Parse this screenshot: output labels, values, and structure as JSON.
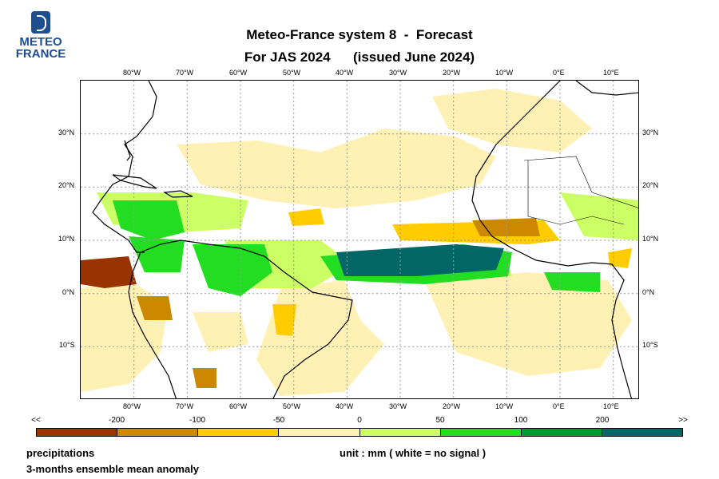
{
  "logo": {
    "line1": "METEO",
    "line2": "FRANCE",
    "icon": "meteo-france-logo-icon"
  },
  "title": {
    "line1": "Meteo-France system 8  -  Forecast",
    "line2": "For JAS 2024      (issued June 2024)"
  },
  "map": {
    "lon_ticks": [
      "80°W",
      "70°W",
      "60°W",
      "50°W",
      "40°W",
      "30°W",
      "20°W",
      "10°W",
      "0°E",
      "10°E"
    ],
    "lat_ticks": [
      "30°N",
      "20°N",
      "10°N",
      "0°N",
      "10°S"
    ],
    "lon_range": [
      -90,
      15
    ],
    "lat_range": [
      -20,
      40
    ],
    "grid": true
  },
  "colorbar": {
    "labels": [
      "<<",
      "-200",
      "-100",
      "-50",
      "0",
      "50",
      "100",
      "200",
      ">>"
    ],
    "colors": [
      "#993300",
      "#cc8800",
      "#ffcc00",
      "#fff0b3",
      "#ccff66",
      "#22dd22",
      "#009933",
      "#006666"
    ]
  },
  "footer": {
    "left1": "precipitations",
    "left2": "3-months ensemble mean anomaly",
    "unit": "unit : mm  ( white = no signal )"
  }
}
